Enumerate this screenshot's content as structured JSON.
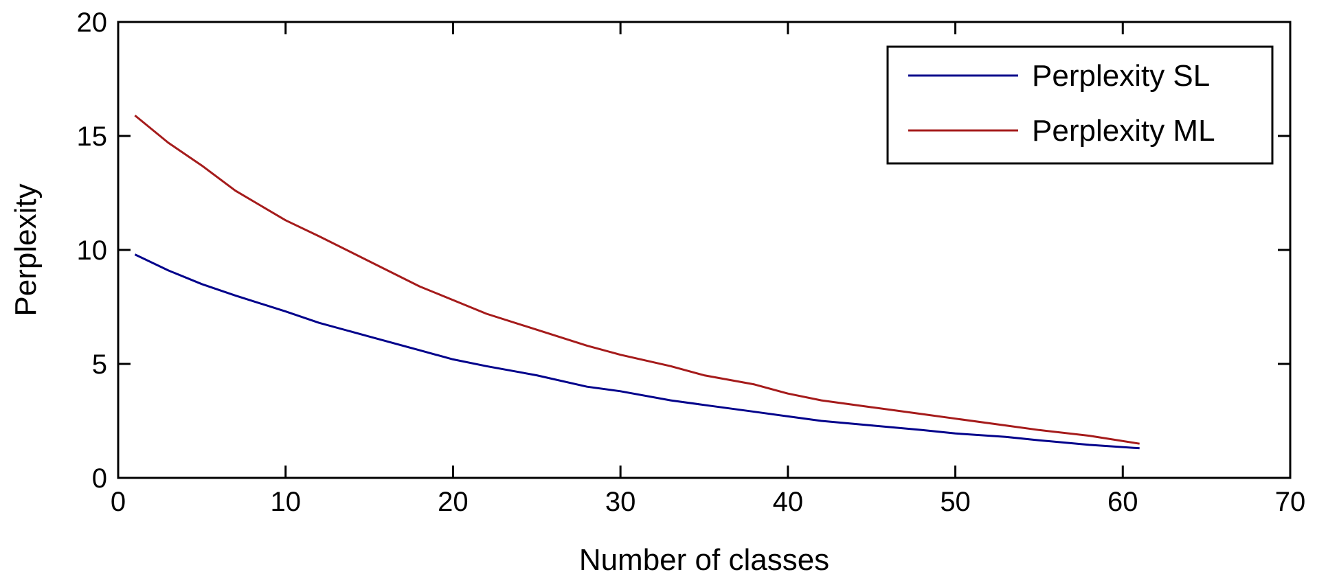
{
  "chart_data": {
    "type": "line",
    "xlabel": "Number of classes",
    "ylabel": "Perplexity",
    "xlim": [
      0,
      70
    ],
    "ylim": [
      0,
      20
    ],
    "xticks": [
      0,
      10,
      20,
      30,
      40,
      50,
      60,
      70
    ],
    "yticks": [
      0,
      5,
      10,
      15,
      20
    ],
    "grid": false,
    "legend_position": "top-right",
    "x": [
      1,
      3,
      5,
      7,
      10,
      12,
      15,
      18,
      20,
      22,
      25,
      28,
      30,
      33,
      35,
      38,
      40,
      42,
      45,
      48,
      50,
      53,
      55,
      58,
      61
    ],
    "series": [
      {
        "name": "Perplexity SL",
        "color": "#00008b",
        "values": [
          9.8,
          9.1,
          8.5,
          8.0,
          7.3,
          6.8,
          6.2,
          5.6,
          5.2,
          4.9,
          4.5,
          4.0,
          3.8,
          3.4,
          3.2,
          2.9,
          2.7,
          2.5,
          2.3,
          2.1,
          1.95,
          1.8,
          1.65,
          1.45,
          1.3
        ]
      },
      {
        "name": "Perplexity ML",
        "color": "#a51b1b",
        "values": [
          15.9,
          14.7,
          13.7,
          12.6,
          11.3,
          10.6,
          9.5,
          8.4,
          7.8,
          7.2,
          6.5,
          5.8,
          5.4,
          4.9,
          4.5,
          4.1,
          3.7,
          3.4,
          3.1,
          2.8,
          2.6,
          2.3,
          2.1,
          1.85,
          1.5
        ]
      }
    ]
  }
}
